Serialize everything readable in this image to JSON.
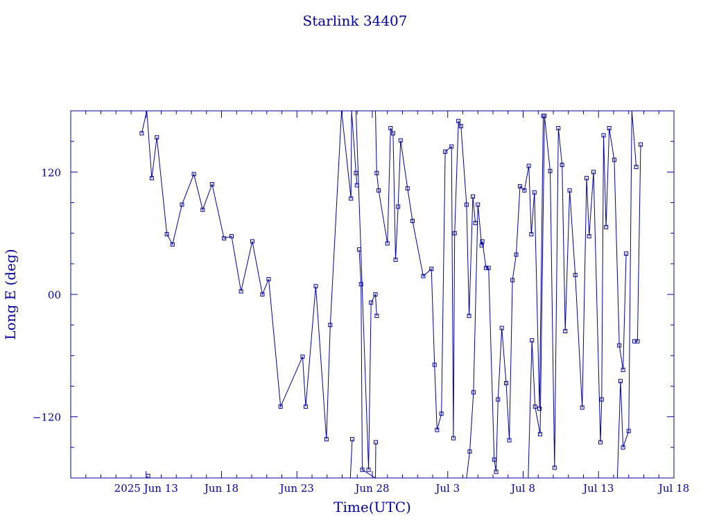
{
  "chart_data": {
    "type": "line",
    "title": "Starlink 34407",
    "xlabel": "Time(UTC)",
    "ylabel": "Long E (deg)",
    "ylim": [
      -180,
      180
    ],
    "xlim": [
      "2025-06-08",
      "2025-07-18"
    ],
    "grid": false,
    "line_color": "#0000a0",
    "x_ticks": [
      {
        "date": "2025-06-13",
        "label": "2025 Jun 13"
      },
      {
        "date": "2025-06-18",
        "label": "Jun 18"
      },
      {
        "date": "2025-06-23",
        "label": "Jun 23"
      },
      {
        "date": "2025-06-28",
        "label": "Jun 28"
      },
      {
        "date": "2025-07-03",
        "label": "Jul 3"
      },
      {
        "date": "2025-07-08",
        "label": "Jul 8"
      },
      {
        "date": "2025-07-13",
        "label": "Jul 13"
      },
      {
        "date": "2025-07-18",
        "label": "Jul 18"
      }
    ],
    "y_ticks": [
      {
        "value": 120,
        "label": "120"
      },
      {
        "value": 0,
        "label": "00"
      },
      {
        "value": -120,
        "label": "−120"
      }
    ],
    "series": [
      {
        "x": [
          "2025-06-12T17:00",
          "2025-06-13T01:00",
          "2025-06-13T09:00",
          "2025-06-13T17:00",
          "2025-06-14T09:00",
          "2025-06-14T18:00",
          "2025-06-15T09:00",
          "2025-06-16T04:00",
          "2025-06-16T18:00",
          "2025-06-17T09:00",
          "2025-06-18T04:00",
          "2025-06-18T16:00",
          "2025-06-19T07:00",
          "2025-06-20T01:00",
          "2025-06-20T17:00",
          "2025-06-21T03:00",
          "2025-06-21T22:00",
          "2025-06-23T09:00",
          "2025-06-23T14:00",
          "2025-06-24T06:00",
          "2025-06-24T23:00",
          "2025-06-25T05:00",
          "2025-06-25T23:00",
          "2025-06-26T14:00",
          "2025-06-26T15:00",
          "2025-06-26T22:00",
          "2025-06-26T23:30"
        ],
        "y": [
          158,
          180,
          114,
          154,
          59,
          49,
          88,
          118,
          83,
          108,
          55,
          57,
          3,
          52,
          0,
          15,
          -110,
          -61,
          -110,
          8,
          -142,
          -30,
          180,
          94,
          180,
          119,
          107
        ]
      },
      {
        "x": [
          "2025-06-26T13:00",
          "2025-06-26T16:00"
        ],
        "y": [
          -180,
          -142
        ]
      },
      {
        "x": [
          "2025-06-27T03:00",
          "2025-06-27T06:00",
          "2025-06-27T08:00",
          "2025-06-28T05:00",
          "2025-06-28T05:30"
        ],
        "y": [
          44,
          10,
          -172,
          -180,
          -145
        ]
      },
      {
        "x": [
          "2025-06-26T22:00",
          "2025-06-27T18:00",
          "2025-06-27T22:00",
          "2025-06-28T05:00",
          "2025-06-28T07:00"
        ],
        "y": [
          180,
          -172,
          -8,
          0,
          -21
        ]
      },
      {
        "x": [
          "2025-06-28T05:00",
          "2025-06-28T07:00",
          "2025-06-28T10:00",
          "2025-06-29T00:00",
          "2025-06-29T05:00",
          "2025-06-29T09:00",
          "2025-06-29T13:00",
          "2025-06-29T17:00",
          "2025-06-29T21:00",
          "2025-06-30T08:00",
          "2025-06-30T16:00",
          "2025-07-01T09:00",
          "2025-07-01T22:00",
          "2025-07-02T03:00",
          "2025-07-02T07:00",
          "2025-07-02T14:00",
          "2025-07-02T20:00",
          "2025-07-03T06:00",
          "2025-07-03T09:00",
          "2025-07-03T11:00",
          "2025-07-03T17:00",
          "2025-07-03T21:00",
          "2025-07-04T06:00",
          "2025-07-04T10:00",
          "2025-07-04T16:00",
          "2025-07-04T20:00"
        ],
        "y": [
          180,
          119,
          102,
          50,
          163,
          158,
          34,
          86,
          151,
          104,
          72,
          18,
          25,
          -69,
          -133,
          -117,
          140,
          145,
          -141,
          60,
          170,
          165,
          88,
          -21,
          96,
          70
        ]
      },
      {
        "x": [
          "2025-07-04T06:00",
          "2025-07-04T11:00",
          "2025-07-04T17:00",
          "2025-07-05T00:00",
          "2025-07-05T06:00",
          "2025-07-05T07:00",
          "2025-07-05T13:00",
          "2025-07-05T17:00",
          "2025-07-06T02:00",
          "2025-07-06T05:00",
          "2025-07-06T08:00",
          "2025-07-06T14:00",
          "2025-07-06T21:00",
          "2025-07-07T02:00",
          "2025-07-07T07:00",
          "2025-07-07T13:00",
          "2025-07-07T19:00",
          "2025-07-08T02:00",
          "2025-07-08T09:00",
          "2025-07-08T13:00",
          "2025-07-08T18:00",
          "2025-07-09T02:00",
          "2025-07-09T08:00"
        ],
        "y": [
          -180,
          -154,
          -96,
          88,
          48,
          52,
          26,
          26,
          -162,
          -174,
          -103,
          -33,
          -87,
          -143,
          14,
          39,
          106,
          102,
          126,
          59,
          100,
          -112,
          175
        ]
      },
      {
        "x": [
          "2025-07-08T08:00",
          "2025-07-08T14:00",
          "2025-07-08T19:00",
          "2025-07-09T03:00",
          "2025-07-09T10:00",
          "2025-07-09T19:00",
          "2025-07-10T02:00",
          "2025-07-10T08:00",
          "2025-07-10T14:00",
          "2025-07-10T19:00",
          "2025-07-11T02:00",
          "2025-07-11T11:00",
          "2025-07-11T22:00",
          "2025-07-12T05:00",
          "2025-07-12T09:00",
          "2025-07-12T16:00",
          "2025-07-13T03:00",
          "2025-07-13T05:00",
          "2025-07-13T08:00",
          "2025-07-13T12:00",
          "2025-07-13T17:00",
          "2025-07-14T01:00",
          "2025-07-14T09:00",
          "2025-07-14T15:00",
          "2025-07-14T20:00"
        ],
        "y": [
          -180,
          -45,
          -110,
          -137,
          175,
          121,
          -170,
          163,
          127,
          -36,
          102,
          19,
          -111,
          114,
          57,
          120,
          -145,
          -103,
          156,
          66,
          163,
          132,
          -50,
          -74,
          40
        ]
      },
      {
        "x": [
          "2025-07-14T06:00",
          "2025-07-14T11:00",
          "2025-07-14T15:00",
          "2025-07-15T00:00",
          "2025-07-15T05:00",
          "2025-07-15T12:00"
        ],
        "y": [
          -180,
          -85,
          -150,
          -134,
          180,
          125
        ]
      },
      {
        "x": [
          "2025-07-15T09:00",
          "2025-07-15T14:00",
          "2025-07-15T19:00"
        ],
        "y": [
          -46,
          -46,
          147
        ]
      },
      {
        "x": [
          "2025-06-13T01:00",
          "2025-06-13T03:00"
        ],
        "y": [
          -180,
          -178
        ]
      }
    ]
  }
}
